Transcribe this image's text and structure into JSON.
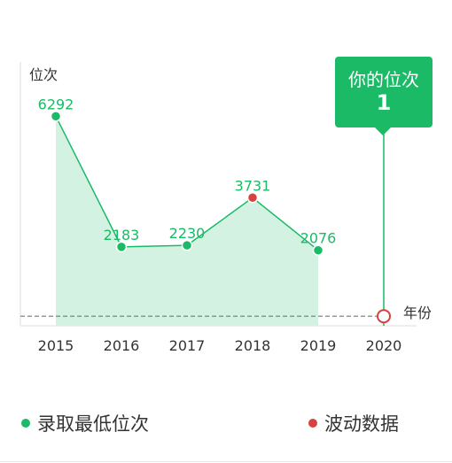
{
  "colors": {
    "accent": "#1aba66",
    "area": "#d3f2e1",
    "fluctuation": "#d9413e",
    "axis": "#e8e8e8",
    "reference": "#777777",
    "text": "#333333"
  },
  "chart_data": {
    "type": "line",
    "title": "",
    "ylabel": "位次",
    "xlabel": "年份",
    "categories": [
      "2015",
      "2016",
      "2017",
      "2018",
      "2019",
      "2020"
    ],
    "series": [
      {
        "name": "录取最低位次",
        "values": [
          6292,
          2183,
          2230,
          3731,
          2076,
          null
        ],
        "fluctuation_flags": [
          false,
          false,
          false,
          true,
          false,
          false
        ]
      }
    ],
    "predicted": {
      "category": "2020",
      "value": 1,
      "label": "你的位次",
      "value_label": "1"
    },
    "ylim": [
      -300,
      8000
    ],
    "grid": false,
    "legend": [
      {
        "name": "录取最低位次",
        "color": "#1aba66"
      },
      {
        "name": "波动数据",
        "color": "#d9413e"
      }
    ],
    "legend_position": "bottom"
  }
}
